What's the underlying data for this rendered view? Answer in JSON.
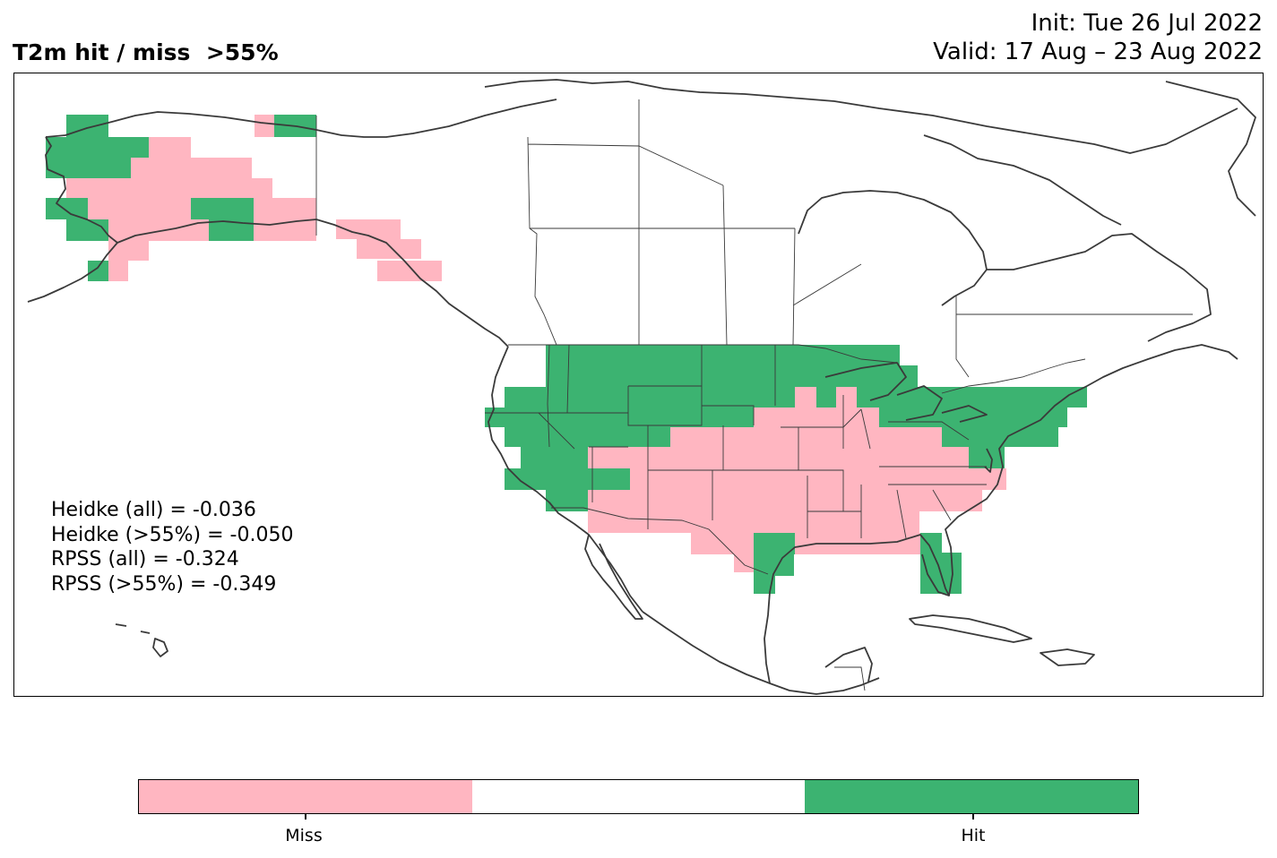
{
  "title": "T2m hit / miss  >55%",
  "init_line": "Init: Tue 26 Jul 2022",
  "valid_line": "Valid: 17 Aug – 23 Aug 2022",
  "scores": [
    "Heidke (all) = -0.036",
    "Heidke (>55%) = -0.050",
    "RPSS (all) = -0.324",
    "RPSS (>55%) = -0.349"
  ],
  "colorbar": {
    "segments": [
      {
        "label": "Miss",
        "color": "#ffb6c1"
      },
      {
        "label": "",
        "color": "#ffffff"
      },
      {
        "label": "Hit",
        "color": "#3cb371"
      }
    ]
  },
  "colors": {
    "miss": "#ffb6c1",
    "hit": "#3cb371",
    "coast": "#3a3a3a"
  }
}
